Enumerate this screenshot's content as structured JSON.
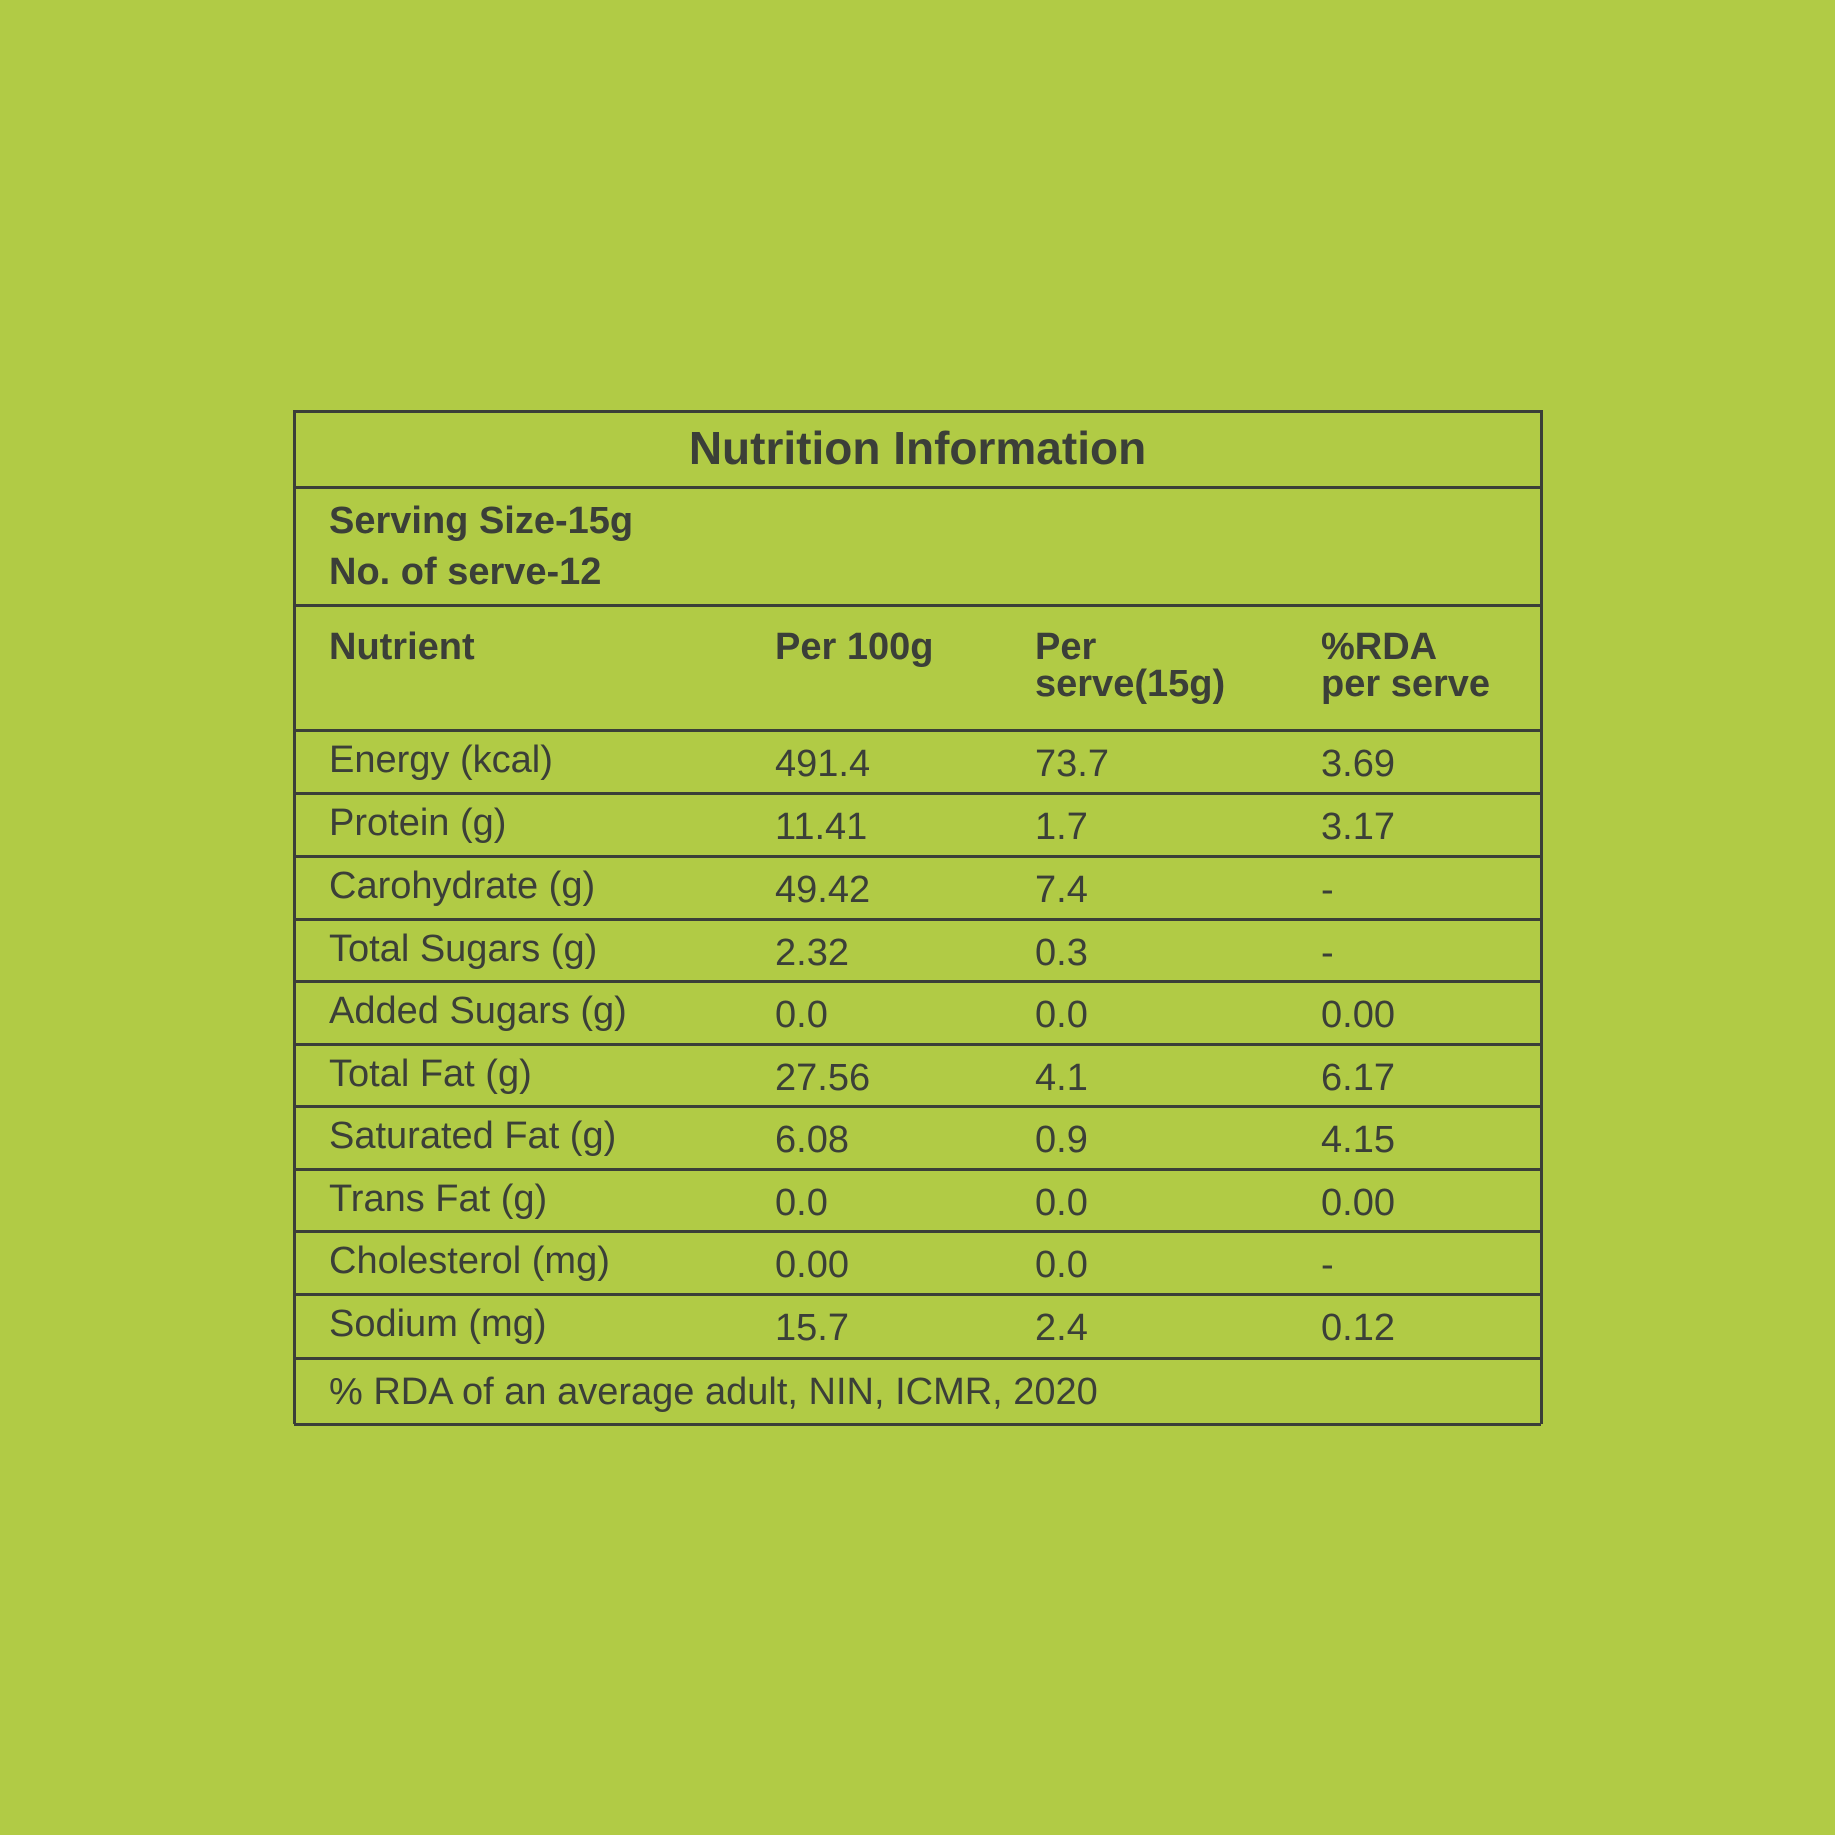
{
  "title": "Nutrition Information",
  "serving": [
    "Serving Size-15g",
    "No. of serve-12"
  ],
  "header": [
    [
      "Nutrient"
    ],
    [
      "Per 100g"
    ],
    [
      "Per",
      "serve(15g)"
    ],
    [
      "%RDA",
      "per serve"
    ]
  ],
  "rows": [
    [
      "Energy (kcal)",
      "491.4",
      "73.7",
      "3.69"
    ],
    [
      "Protein (g)",
      "11.41",
      "1.7",
      "3.17"
    ],
    [
      "Carohydrate (g)",
      "49.42",
      "7.4",
      "-"
    ],
    [
      "Total Sugars (g)",
      "2.32",
      "0.3",
      "-"
    ],
    [
      "Added Sugars (g)",
      "0.0",
      "0.0",
      "0.00"
    ],
    [
      "Total Fat (g)",
      "27.56",
      "4.1",
      "6.17"
    ],
    [
      "Saturated Fat (g)",
      "6.08",
      "0.9",
      "4.15"
    ],
    [
      "Trans Fat (g)",
      "0.0",
      "0.0",
      "0.00"
    ],
    [
      "Cholesterol (mg)",
      "0.00",
      "0.0",
      "-"
    ],
    [
      "Sodium (mg)",
      "15.7",
      "2.4",
      "0.12"
    ]
  ],
  "footer": "% RDA of an average adult, NIN, ICMR, 2020"
}
